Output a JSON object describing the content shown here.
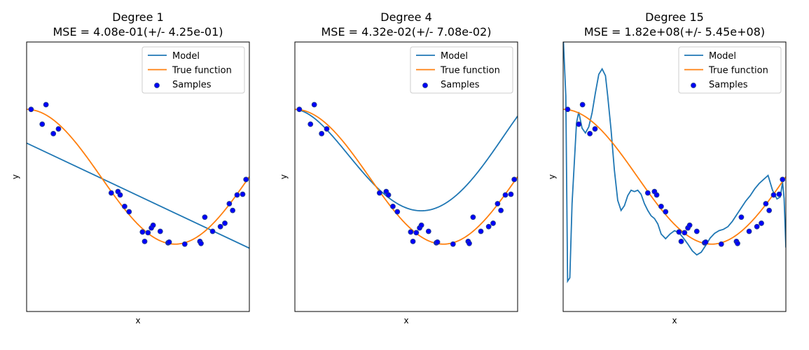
{
  "chart_data": [
    {
      "type": "scatter",
      "title": "Degree 1",
      "subtitle": "MSE = 4.08e-01(+/- 4.25e-01)",
      "xlabel": "x",
      "ylabel": "y",
      "xlim": [
        0,
        1
      ],
      "ylim": [
        -2,
        2
      ],
      "grid": false,
      "legend_placement": "top-right",
      "legend": [
        "Model",
        "True function",
        "Samples"
      ],
      "series": [
        {
          "name": "Model",
          "kind": "line",
          "color": "#1f77b4",
          "x": [
            0,
            1
          ],
          "y": [
            0.5,
            -1.06
          ]
        },
        {
          "name": "True function",
          "kind": "line",
          "color": "#ff7f0e",
          "fn": "cos_1.5pi"
        },
        {
          "name": "Samples",
          "kind": "scatter",
          "color": "#0000ff",
          "edgecolor": "#1f3a93",
          "x": [
            0.02,
            0.07,
            0.087,
            0.12,
            0.143,
            0.38,
            0.41,
            0.42,
            0.44,
            0.46,
            0.52,
            0.53,
            0.545,
            0.56,
            0.568,
            0.6,
            0.635,
            0.64,
            0.71,
            0.778,
            0.783,
            0.8,
            0.835,
            0.87,
            0.89,
            0.91,
            0.925,
            0.945,
            0.97,
            0.985
          ],
          "y": [
            1.0,
            0.78,
            1.07,
            0.64,
            0.71,
            -0.24,
            -0.22,
            -0.27,
            -0.44,
            -0.52,
            -0.82,
            -0.96,
            -0.83,
            -0.76,
            -0.72,
            -0.81,
            -0.98,
            -0.97,
            -1.0,
            -0.96,
            -0.99,
            -0.6,
            -0.81,
            -0.74,
            -0.69,
            -0.4,
            -0.5,
            -0.27,
            -0.26,
            -0.04
          ]
        }
      ]
    },
    {
      "type": "scatter",
      "title": "Degree 4",
      "subtitle": "MSE = 4.32e-02(+/- 7.08e-02)",
      "xlabel": "x",
      "ylabel": "y",
      "xlim": [
        0,
        1
      ],
      "ylim": [
        -2,
        2
      ],
      "grid": false,
      "legend_placement": "top-right",
      "legend": [
        "Model",
        "True function",
        "Samples"
      ],
      "series": [
        {
          "name": "Model",
          "kind": "line",
          "color": "#1f77b4",
          "fn": "poly4_fit"
        },
        {
          "name": "True function",
          "kind": "line",
          "color": "#ff7f0e",
          "fn": "cos_1.5pi"
        },
        {
          "name": "Samples",
          "kind": "scatter",
          "color": "#0000ff",
          "edgecolor": "#1f3a93",
          "x": [
            0.02,
            0.07,
            0.087,
            0.12,
            0.143,
            0.38,
            0.41,
            0.42,
            0.44,
            0.46,
            0.52,
            0.53,
            0.545,
            0.56,
            0.568,
            0.6,
            0.635,
            0.64,
            0.71,
            0.778,
            0.783,
            0.8,
            0.835,
            0.87,
            0.89,
            0.91,
            0.925,
            0.945,
            0.97,
            0.985
          ],
          "y": [
            1.0,
            0.78,
            1.07,
            0.64,
            0.71,
            -0.24,
            -0.22,
            -0.27,
            -0.44,
            -0.52,
            -0.82,
            -0.96,
            -0.83,
            -0.76,
            -0.72,
            -0.81,
            -0.98,
            -0.97,
            -1.0,
            -0.96,
            -0.99,
            -0.6,
            -0.81,
            -0.74,
            -0.69,
            -0.4,
            -0.5,
            -0.27,
            -0.26,
            -0.04
          ]
        }
      ]
    },
    {
      "type": "scatter",
      "title": "Degree 15",
      "subtitle": "MSE = 1.82e+08(+/- 5.45e+08)",
      "xlabel": "x",
      "ylabel": "y",
      "xlim": [
        0,
        1
      ],
      "ylim": [
        -2,
        2
      ],
      "grid": false,
      "legend_placement": "top-right",
      "legend": [
        "Model",
        "True function",
        "Samples"
      ],
      "series": [
        {
          "name": "Model",
          "kind": "line",
          "color": "#1f77b4",
          "x": [
            0.0,
            0.012,
            0.02,
            0.03,
            0.04,
            0.05,
            0.06,
            0.07,
            0.085,
            0.1,
            0.115,
            0.13,
            0.145,
            0.16,
            0.175,
            0.19,
            0.2,
            0.215,
            0.23,
            0.245,
            0.26,
            0.275,
            0.29,
            0.305,
            0.32,
            0.335,
            0.35,
            0.365,
            0.38,
            0.395,
            0.41,
            0.425,
            0.44,
            0.46,
            0.48,
            0.5,
            0.52,
            0.54,
            0.56,
            0.58,
            0.6,
            0.62,
            0.64,
            0.66,
            0.68,
            0.7,
            0.72,
            0.74,
            0.76,
            0.78,
            0.8,
            0.82,
            0.84,
            0.86,
            0.88,
            0.9,
            0.92,
            0.94,
            0.96,
            0.975,
            0.985,
            0.992,
            1.0
          ],
          "y": [
            2.1,
            1.2,
            -1.55,
            -1.5,
            -0.4,
            0.2,
            0.8,
            0.96,
            0.72,
            0.65,
            0.74,
            0.95,
            1.25,
            1.52,
            1.6,
            1.5,
            1.2,
            0.7,
            0.1,
            -0.35,
            -0.5,
            -0.43,
            -0.28,
            -0.2,
            -0.22,
            -0.2,
            -0.26,
            -0.4,
            -0.5,
            -0.58,
            -0.62,
            -0.7,
            -0.85,
            -0.92,
            -0.85,
            -0.8,
            -0.83,
            -0.91,
            -1.0,
            -1.1,
            -1.16,
            -1.12,
            -1.02,
            -0.91,
            -0.84,
            -0.8,
            -0.78,
            -0.74,
            -0.66,
            -0.56,
            -0.46,
            -0.36,
            -0.28,
            -0.18,
            -0.1,
            -0.04,
            0.02,
            -0.2,
            -0.33,
            -0.3,
            -0.08,
            -0.32,
            -1.05
          ]
        },
        {
          "name": "True function",
          "kind": "line",
          "color": "#ff7f0e",
          "fn": "cos_1.5pi"
        },
        {
          "name": "Samples",
          "kind": "scatter",
          "color": "#0000ff",
          "edgecolor": "#1f3a93",
          "x": [
            0.02,
            0.07,
            0.087,
            0.12,
            0.143,
            0.38,
            0.41,
            0.42,
            0.44,
            0.46,
            0.52,
            0.53,
            0.545,
            0.56,
            0.568,
            0.6,
            0.635,
            0.64,
            0.71,
            0.778,
            0.783,
            0.8,
            0.835,
            0.87,
            0.89,
            0.91,
            0.925,
            0.945,
            0.97,
            0.985
          ],
          "y": [
            1.0,
            0.78,
            1.07,
            0.64,
            0.71,
            -0.24,
            -0.22,
            -0.27,
            -0.44,
            -0.52,
            -0.82,
            -0.96,
            -0.83,
            -0.76,
            -0.72,
            -0.81,
            -0.98,
            -0.97,
            -1.0,
            -0.96,
            -0.99,
            -0.6,
            -0.81,
            -0.74,
            -0.69,
            -0.4,
            -0.5,
            -0.27,
            -0.26,
            -0.04
          ]
        }
      ]
    }
  ]
}
